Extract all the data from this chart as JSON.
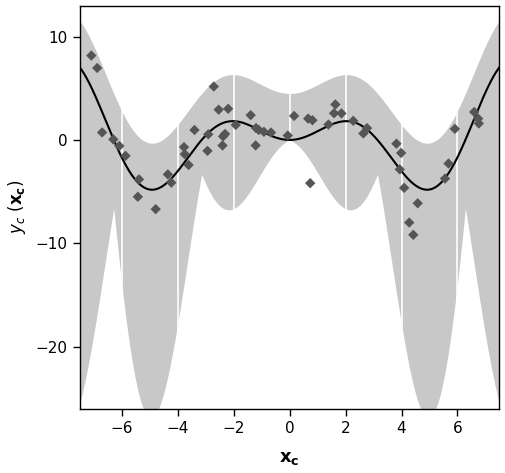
{
  "xlim": [
    -7.5,
    7.5
  ],
  "ylim": [
    -26,
    13
  ],
  "xticks": [
    -6,
    -4,
    -2,
    0,
    2,
    4,
    6
  ],
  "yticks": [
    -20,
    -10,
    0,
    10
  ],
  "xlabel": "$\\mathbf{x_c}$",
  "ylabel": "$y_c\\ (\\mathbf{x_c})$",
  "curve_color": "black",
  "scatter_color": "#555555",
  "band_color": "#c8c8c8",
  "background_color": "#ffffff",
  "grid_color": "#e0e0e0",
  "ax_background": "#ffffff"
}
